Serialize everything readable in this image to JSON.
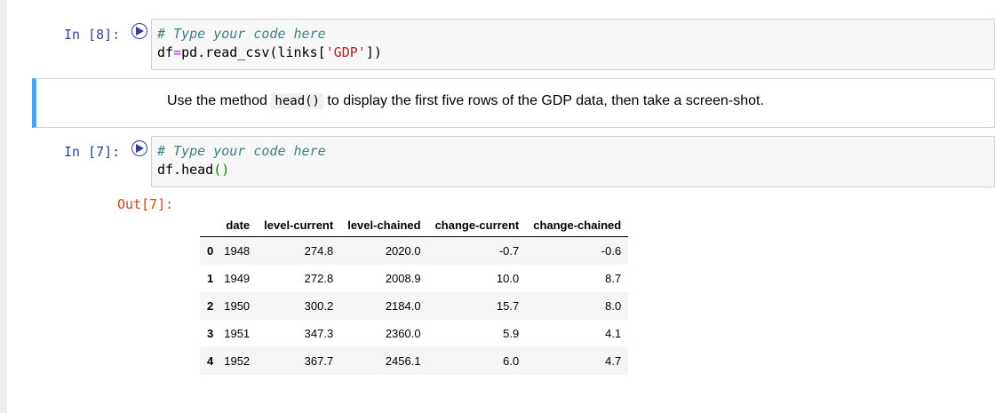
{
  "cells": [
    {
      "prompt": "In [8]:",
      "code": [
        {
          "comment": "# Type your code here"
        },
        {
          "pre": "df",
          "op": "=",
          "mid": "pd.read_csv(links[",
          "str": "'GDP'",
          "post": "])"
        }
      ]
    },
    {
      "markdown": {
        "before": "Use the method ",
        "code": "head()",
        "after": " to display the first five rows of the GDP data, then take a screen-shot."
      }
    },
    {
      "prompt": "In [7]:",
      "code": [
        {
          "comment": "# Type your code here"
        },
        {
          "pre": "df.head",
          "paren": "()"
        }
      ],
      "output_prompt": "Out[7]:"
    }
  ],
  "table": {
    "columns": [
      "",
      "date",
      "level-current",
      "level-chained",
      "change-current",
      "change-chained"
    ],
    "rows": [
      [
        "0",
        "1948",
        "274.8",
        "2020.0",
        "-0.7",
        "-0.6"
      ],
      [
        "1",
        "1949",
        "272.8",
        "2008.9",
        "10.0",
        "8.7"
      ],
      [
        "2",
        "1950",
        "300.2",
        "2184.0",
        "15.7",
        "8.0"
      ],
      [
        "3",
        "1951",
        "347.3",
        "2360.0",
        "5.9",
        "4.1"
      ],
      [
        "4",
        "1952",
        "367.7",
        "2456.1",
        "6.0",
        "4.7"
      ]
    ]
  },
  "colors": {
    "prompt": "#303f9f",
    "out_prompt": "#d84315",
    "md_border": "#42a5f5"
  }
}
